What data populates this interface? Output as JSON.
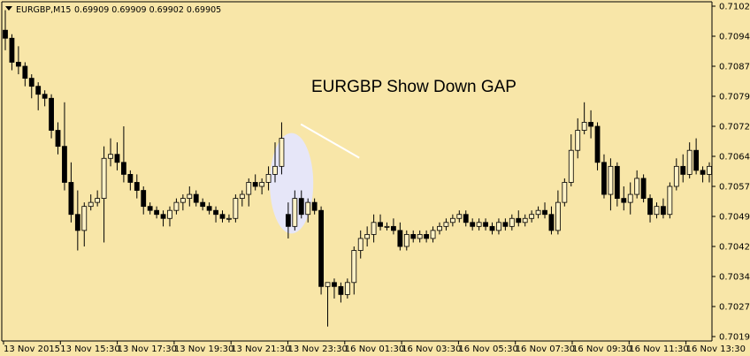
{
  "header": {
    "symbol": "EURGBP,M15",
    "ohlc": "0.69909 0.69909 0.69902 0.69905"
  },
  "colors": {
    "background": "#F8E6A8",
    "bull_body": "#FFF2C6",
    "bear_body": "#000000",
    "wick": "#000000",
    "gap_highlight": "#E6E6F8",
    "gap_arrow": "#FFFFFF"
  },
  "chart_data": {
    "type": "candlestick",
    "title": "EURGBP Show Down GAP",
    "timeframe": "M15",
    "ylim": [
      0.70195,
      0.7102
    ],
    "y_ticks": [
      "0.71020",
      "0.70945",
      "0.70870",
      "0.70795",
      "0.70720",
      "0.70645",
      "0.70570",
      "0.70495",
      "0.70420",
      "0.70345",
      "0.70270",
      "0.70195"
    ],
    "x_ticks": [
      "13 Nov 2015",
      "13 Nov 15:30",
      "13 Nov 17:30",
      "13 Nov 19:30",
      "13 Nov 21:30",
      "13 Nov 23:30",
      "16 Nov 01:30",
      "16 Nov 03:30",
      "16 Nov 05:30",
      "16 Nov 07:30",
      "16 Nov 09:30",
      "16 Nov 11:30",
      "16 Nov 13:30"
    ],
    "candles": [
      {
        "o": 0.7096,
        "h": 0.7101,
        "l": 0.7091,
        "c": 0.7094
      },
      {
        "o": 0.7094,
        "h": 0.7095,
        "l": 0.7086,
        "c": 0.7088
      },
      {
        "o": 0.7088,
        "h": 0.7092,
        "l": 0.7085,
        "c": 0.7087
      },
      {
        "o": 0.7087,
        "h": 0.7088,
        "l": 0.7082,
        "c": 0.7084
      },
      {
        "o": 0.7084,
        "h": 0.7085,
        "l": 0.7079,
        "c": 0.7082
      },
      {
        "o": 0.7082,
        "h": 0.7083,
        "l": 0.7076,
        "c": 0.708
      },
      {
        "o": 0.708,
        "h": 0.7081,
        "l": 0.7077,
        "c": 0.7079
      },
      {
        "o": 0.7079,
        "h": 0.708,
        "l": 0.7069,
        "c": 0.7071
      },
      {
        "o": 0.7071,
        "h": 0.7073,
        "l": 0.7065,
        "c": 0.7067
      },
      {
        "o": 0.7067,
        "h": 0.7078,
        "l": 0.7056,
        "c": 0.7058
      },
      {
        "o": 0.7058,
        "h": 0.7063,
        "l": 0.7048,
        "c": 0.705
      },
      {
        "o": 0.705,
        "h": 0.7056,
        "l": 0.7041,
        "c": 0.7046
      },
      {
        "o": 0.7046,
        "h": 0.7053,
        "l": 0.7042,
        "c": 0.7052
      },
      {
        "o": 0.7052,
        "h": 0.7055,
        "l": 0.7051,
        "c": 0.7053
      },
      {
        "o": 0.7053,
        "h": 0.7056,
        "l": 0.7052,
        "c": 0.7054
      },
      {
        "o": 0.7054,
        "h": 0.7067,
        "l": 0.7043,
        "c": 0.7064
      },
      {
        "o": 0.7064,
        "h": 0.7069,
        "l": 0.7062,
        "c": 0.7065
      },
      {
        "o": 0.7065,
        "h": 0.7068,
        "l": 0.7061,
        "c": 0.7063
      },
      {
        "o": 0.7063,
        "h": 0.7072,
        "l": 0.7058,
        "c": 0.706
      },
      {
        "o": 0.706,
        "h": 0.7061,
        "l": 0.7056,
        "c": 0.7058
      },
      {
        "o": 0.7058,
        "h": 0.706,
        "l": 0.7054,
        "c": 0.7056
      },
      {
        "o": 0.7056,
        "h": 0.7057,
        "l": 0.705,
        "c": 0.7052
      },
      {
        "o": 0.7052,
        "h": 0.7053,
        "l": 0.705,
        "c": 0.7051
      },
      {
        "o": 0.7051,
        "h": 0.7052,
        "l": 0.7049,
        "c": 0.705
      },
      {
        "o": 0.705,
        "h": 0.7051,
        "l": 0.7047,
        "c": 0.7049
      },
      {
        "o": 0.7049,
        "h": 0.7052,
        "l": 0.7047,
        "c": 0.7051
      },
      {
        "o": 0.7051,
        "h": 0.7054,
        "l": 0.705,
        "c": 0.7053
      },
      {
        "o": 0.7053,
        "h": 0.7055,
        "l": 0.7051,
        "c": 0.7054
      },
      {
        "o": 0.7054,
        "h": 0.7057,
        "l": 0.7052,
        "c": 0.7055
      },
      {
        "o": 0.7055,
        "h": 0.7056,
        "l": 0.7052,
        "c": 0.7053
      },
      {
        "o": 0.7053,
        "h": 0.7054,
        "l": 0.7051,
        "c": 0.7052
      },
      {
        "o": 0.7052,
        "h": 0.7053,
        "l": 0.705,
        "c": 0.7051
      },
      {
        "o": 0.7051,
        "h": 0.7052,
        "l": 0.7048,
        "c": 0.705
      },
      {
        "o": 0.705,
        "h": 0.7051,
        "l": 0.7048,
        "c": 0.7049
      },
      {
        "o": 0.7049,
        "h": 0.705,
        "l": 0.7048,
        "c": 0.7049
      },
      {
        "o": 0.7049,
        "h": 0.7055,
        "l": 0.7048,
        "c": 0.7054
      },
      {
        "o": 0.7054,
        "h": 0.7056,
        "l": 0.7052,
        "c": 0.7055
      },
      {
        "o": 0.7055,
        "h": 0.7059,
        "l": 0.7052,
        "c": 0.7058
      },
      {
        "o": 0.7058,
        "h": 0.706,
        "l": 0.7056,
        "c": 0.7057
      },
      {
        "o": 0.7057,
        "h": 0.7059,
        "l": 0.7055,
        "c": 0.7058
      },
      {
        "o": 0.7058,
        "h": 0.7062,
        "l": 0.7056,
        "c": 0.706
      },
      {
        "o": 0.706,
        "h": 0.7068,
        "l": 0.7058,
        "c": 0.7062
      },
      {
        "o": 0.7062,
        "h": 0.7073,
        "l": 0.706,
        "c": 0.7069
      },
      {
        "o": 0.705,
        "h": 0.7053,
        "l": 0.7044,
        "c": 0.7047
      },
      {
        "o": 0.7047,
        "h": 0.7056,
        "l": 0.7046,
        "c": 0.7054
      },
      {
        "o": 0.7054,
        "h": 0.7056,
        "l": 0.7049,
        "c": 0.705
      },
      {
        "o": 0.705,
        "h": 0.7054,
        "l": 0.7048,
        "c": 0.7053
      },
      {
        "o": 0.7053,
        "h": 0.7054,
        "l": 0.705,
        "c": 0.7051
      },
      {
        "o": 0.7051,
        "h": 0.7052,
        "l": 0.703,
        "c": 0.7032
      },
      {
        "o": 0.7032,
        "h": 0.7033,
        "l": 0.7022,
        "c": 0.7033
      },
      {
        "o": 0.7033,
        "h": 0.7034,
        "l": 0.7029,
        "c": 0.7032
      },
      {
        "o": 0.7032,
        "h": 0.7033,
        "l": 0.7028,
        "c": 0.703
      },
      {
        "o": 0.703,
        "h": 0.7034,
        "l": 0.7029,
        "c": 0.7033
      },
      {
        "o": 0.7033,
        "h": 0.7042,
        "l": 0.703,
        "c": 0.7041
      },
      {
        "o": 0.7041,
        "h": 0.7046,
        "l": 0.7039,
        "c": 0.7044
      },
      {
        "o": 0.7044,
        "h": 0.7047,
        "l": 0.7042,
        "c": 0.7045
      },
      {
        "o": 0.7045,
        "h": 0.705,
        "l": 0.7043,
        "c": 0.7048
      },
      {
        "o": 0.7048,
        "h": 0.705,
        "l": 0.7046,
        "c": 0.7047
      },
      {
        "o": 0.7047,
        "h": 0.7048,
        "l": 0.7046,
        "c": 0.7047
      },
      {
        "o": 0.7047,
        "h": 0.7049,
        "l": 0.7045,
        "c": 0.7046
      },
      {
        "o": 0.7046,
        "h": 0.7048,
        "l": 0.7041,
        "c": 0.7042
      },
      {
        "o": 0.7042,
        "h": 0.7046,
        "l": 0.7041,
        "c": 0.7045
      },
      {
        "o": 0.7045,
        "h": 0.7046,
        "l": 0.7043,
        "c": 0.7044
      },
      {
        "o": 0.7044,
        "h": 0.7046,
        "l": 0.7043,
        "c": 0.7045
      },
      {
        "o": 0.7045,
        "h": 0.7046,
        "l": 0.7043,
        "c": 0.7044
      },
      {
        "o": 0.7044,
        "h": 0.7047,
        "l": 0.7043,
        "c": 0.7046
      },
      {
        "o": 0.7046,
        "h": 0.7048,
        "l": 0.7045,
        "c": 0.7047
      },
      {
        "o": 0.7047,
        "h": 0.7049,
        "l": 0.7046,
        "c": 0.7048
      },
      {
        "o": 0.7048,
        "h": 0.705,
        "l": 0.7047,
        "c": 0.7049
      },
      {
        "o": 0.7049,
        "h": 0.7051,
        "l": 0.7048,
        "c": 0.705
      },
      {
        "o": 0.705,
        "h": 0.7051,
        "l": 0.7047,
        "c": 0.7048
      },
      {
        "o": 0.7048,
        "h": 0.7049,
        "l": 0.7046,
        "c": 0.7047
      },
      {
        "o": 0.7047,
        "h": 0.7049,
        "l": 0.7046,
        "c": 0.7048
      },
      {
        "o": 0.7048,
        "h": 0.7049,
        "l": 0.7046,
        "c": 0.7047
      },
      {
        "o": 0.7047,
        "h": 0.7048,
        "l": 0.7045,
        "c": 0.7046
      },
      {
        "o": 0.7046,
        "h": 0.7049,
        "l": 0.7045,
        "c": 0.7048
      },
      {
        "o": 0.7048,
        "h": 0.7049,
        "l": 0.7046,
        "c": 0.7047
      },
      {
        "o": 0.7047,
        "h": 0.705,
        "l": 0.7046,
        "c": 0.7049
      },
      {
        "o": 0.7049,
        "h": 0.7051,
        "l": 0.7047,
        "c": 0.7048
      },
      {
        "o": 0.7048,
        "h": 0.705,
        "l": 0.7047,
        "c": 0.7049
      },
      {
        "o": 0.7049,
        "h": 0.7051,
        "l": 0.7048,
        "c": 0.705
      },
      {
        "o": 0.705,
        "h": 0.7052,
        "l": 0.7049,
        "c": 0.7051
      },
      {
        "o": 0.7051,
        "h": 0.7053,
        "l": 0.7049,
        "c": 0.705
      },
      {
        "o": 0.705,
        "h": 0.7052,
        "l": 0.7045,
        "c": 0.7046
      },
      {
        "o": 0.7046,
        "h": 0.7056,
        "l": 0.7045,
        "c": 0.7053
      },
      {
        "o": 0.7053,
        "h": 0.7059,
        "l": 0.7052,
        "c": 0.7058
      },
      {
        "o": 0.7058,
        "h": 0.707,
        "l": 0.7057,
        "c": 0.7066
      },
      {
        "o": 0.7066,
        "h": 0.7074,
        "l": 0.7064,
        "c": 0.7071
      },
      {
        "o": 0.7071,
        "h": 0.7078,
        "l": 0.707,
        "c": 0.7073
      },
      {
        "o": 0.7073,
        "h": 0.7076,
        "l": 0.7069,
        "c": 0.7072
      },
      {
        "o": 0.7072,
        "h": 0.7073,
        "l": 0.7061,
        "c": 0.7063
      },
      {
        "o": 0.7063,
        "h": 0.7065,
        "l": 0.7054,
        "c": 0.7055
      },
      {
        "o": 0.7055,
        "h": 0.7064,
        "l": 0.7051,
        "c": 0.7062
      },
      {
        "o": 0.7062,
        "h": 0.7063,
        "l": 0.7052,
        "c": 0.7054
      },
      {
        "o": 0.7054,
        "h": 0.7057,
        "l": 0.7051,
        "c": 0.7053
      },
      {
        "o": 0.7053,
        "h": 0.7058,
        "l": 0.705,
        "c": 0.7055
      },
      {
        "o": 0.7055,
        "h": 0.7061,
        "l": 0.7054,
        "c": 0.7059
      },
      {
        "o": 0.7059,
        "h": 0.706,
        "l": 0.7053,
        "c": 0.7054
      },
      {
        "o": 0.7054,
        "h": 0.7055,
        "l": 0.7048,
        "c": 0.705
      },
      {
        "o": 0.705,
        "h": 0.7053,
        "l": 0.7049,
        "c": 0.7052
      },
      {
        "o": 0.7052,
        "h": 0.7054,
        "l": 0.7049,
        "c": 0.705
      },
      {
        "o": 0.705,
        "h": 0.7058,
        "l": 0.7049,
        "c": 0.7057
      },
      {
        "o": 0.7057,
        "h": 0.7064,
        "l": 0.7056,
        "c": 0.7062
      },
      {
        "o": 0.7062,
        "h": 0.7065,
        "l": 0.7058,
        "c": 0.706
      },
      {
        "o": 0.706,
        "h": 0.7068,
        "l": 0.7059,
        "c": 0.7066
      },
      {
        "o": 0.7066,
        "h": 0.7069,
        "l": 0.706,
        "c": 0.7061
      },
      {
        "o": 0.7061,
        "h": 0.7062,
        "l": 0.7058,
        "c": 0.706
      },
      {
        "o": 0.706,
        "h": 0.7063,
        "l": 0.7058,
        "c": 0.7062
      }
    ],
    "gap_highlight_index": [
      41,
      46
    ],
    "grid": false,
    "legend": "none"
  }
}
